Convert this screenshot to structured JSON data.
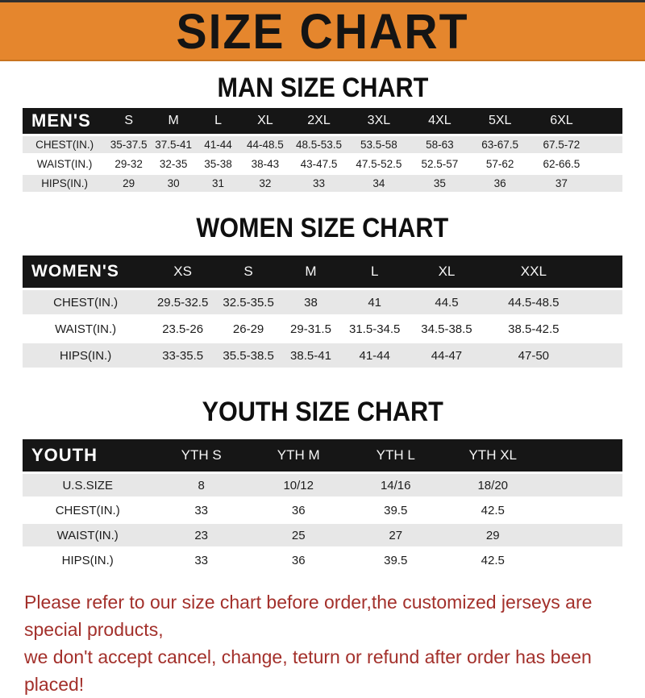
{
  "banner": {
    "title": "SIZE CHART"
  },
  "colors": {
    "banner_orange": "#E5862D",
    "bar_black": "#161616",
    "row_gray": "#E7E7E7",
    "footer_red": "#A3302B"
  },
  "chart_data": [
    {
      "type": "table",
      "title": "MAN SIZE CHART",
      "corner_label": "MEN'S",
      "columns": [
        "S",
        "M",
        "L",
        "XL",
        "2XL",
        "3XL",
        "4XL",
        "5XL",
        "6XL"
      ],
      "rows": [
        {
          "label": "CHEST(IN.)",
          "values": [
            "35-37.5",
            "37.5-41",
            "41-44",
            "44-48.5",
            "48.5-53.5",
            "53.5-58",
            "58-63",
            "63-67.5",
            "67.5-72"
          ]
        },
        {
          "label": "WAIST(IN.)",
          "values": [
            "29-32",
            "32-35",
            "35-38",
            "38-43",
            "43-47.5",
            "47.5-52.5",
            "52.5-57",
            "57-62",
            "62-66.5"
          ]
        },
        {
          "label": "HIPS(IN.)",
          "values": [
            "29",
            "30",
            "31",
            "32",
            "33",
            "34",
            "35",
            "36",
            "37"
          ]
        }
      ]
    },
    {
      "type": "table",
      "title": "WOMEN SIZE CHART",
      "corner_label": "WOMEN'S",
      "columns": [
        "XS",
        "S",
        "M",
        "L",
        "XL",
        "XXL"
      ],
      "rows": [
        {
          "label": "CHEST(IN.)",
          "values": [
            "29.5-32.5",
            "32.5-35.5",
            "38",
            "41",
            "44.5",
            "44.5-48.5"
          ]
        },
        {
          "label": "WAIST(IN.)",
          "values": [
            "23.5-26",
            "26-29",
            "29-31.5",
            "31.5-34.5",
            "34.5-38.5",
            "38.5-42.5"
          ]
        },
        {
          "label": "HIPS(IN.)",
          "values": [
            "33-35.5",
            "35.5-38.5",
            "38.5-41",
            "41-44",
            "44-47",
            "47-50"
          ]
        }
      ]
    },
    {
      "type": "table",
      "title": "YOUTH SIZE CHART",
      "corner_label": "YOUTH",
      "columns": [
        "YTH S",
        "YTH M",
        "YTH L",
        "YTH XL"
      ],
      "rows": [
        {
          "label": "U.S.SIZE",
          "values": [
            "8",
            "10/12",
            "14/16",
            "18/20"
          ]
        },
        {
          "label": "CHEST(IN.)",
          "values": [
            "33",
            "36",
            "39.5",
            "42.5"
          ]
        },
        {
          "label": "WAIST(IN.)",
          "values": [
            "23",
            "25",
            "27",
            "29"
          ]
        },
        {
          "label": "HIPS(IN.)",
          "values": [
            "33",
            "36",
            "39.5",
            "42.5"
          ]
        }
      ]
    }
  ],
  "footer": {
    "line1": "Please refer to our size chart before order,the customized jerseys are special products,",
    "line2": "we don't accept cancel, change, teturn or refund after order has been placed!"
  }
}
